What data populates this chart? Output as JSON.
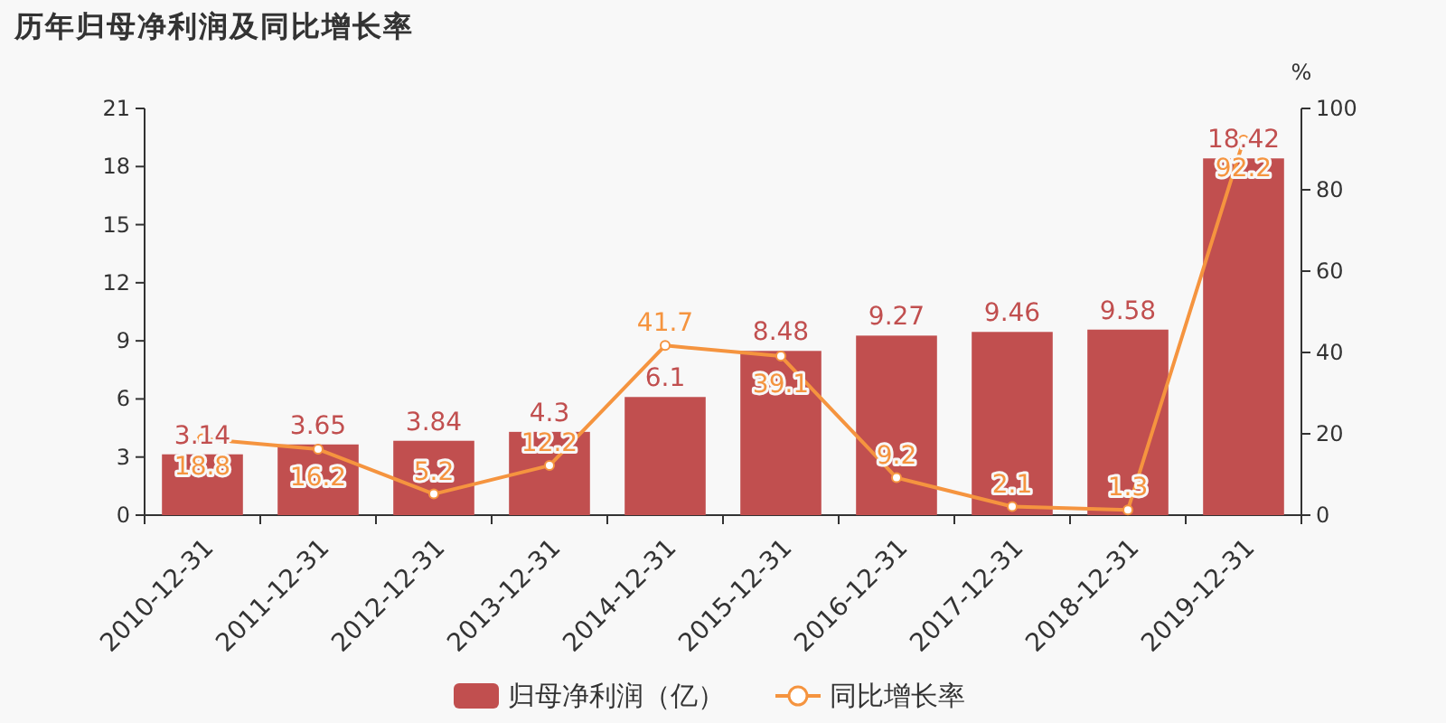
{
  "chart_data": {
    "type": "bar",
    "title": "历年归母净利润及同比增长率",
    "categories": [
      "2010-12-31",
      "2011-12-31",
      "2012-12-31",
      "2013-12-31",
      "2014-12-31",
      "2015-12-31",
      "2016-12-31",
      "2017-12-31",
      "2018-12-31",
      "2019-12-31"
    ],
    "series": [
      {
        "name": "归母净利润（亿）",
        "color": "#c14f4f",
        "values": [
          3.14,
          3.65,
          3.84,
          4.3,
          6.1,
          8.48,
          9.27,
          9.46,
          9.58,
          18.42
        ]
      },
      {
        "name": "同比增长率",
        "type": "line",
        "axis": "y2",
        "color": "#f5943f",
        "marker": "circle",
        "values": [
          18.8,
          16.2,
          5.2,
          12.2,
          41.7,
          39.1,
          9.2,
          2.1,
          1.3,
          92.2
        ]
      }
    ],
    "ylim": [
      0,
      21
    ],
    "yticks": [
      0,
      3,
      6,
      9,
      12,
      15,
      18,
      21
    ],
    "y2lim": [
      0,
      100
    ],
    "y2ticks": [
      0,
      20,
      40,
      60,
      80,
      100
    ],
    "y2label": "%",
    "data_labels": true,
    "legend": "bottom",
    "grid": false
  }
}
